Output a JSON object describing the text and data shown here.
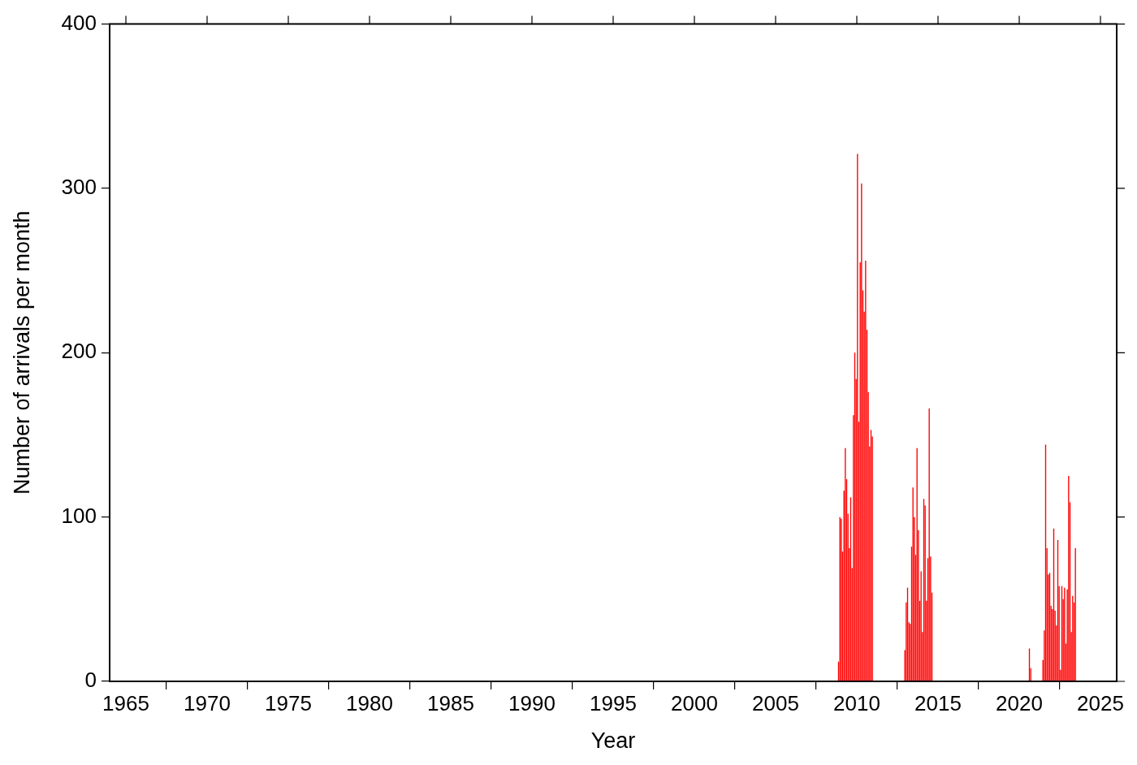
{
  "chart_data": {
    "type": "bar",
    "xlabel": "Year",
    "ylabel": "Number of arrivals per month",
    "xlim": [
      1964,
      2026
    ],
    "xticks": [
      1965,
      1970,
      1975,
      1980,
      1985,
      1990,
      1995,
      2000,
      2005,
      2010,
      2015,
      2020,
      2025
    ],
    "ylim": [
      0,
      400
    ],
    "yticks": [
      0,
      100,
      200,
      300,
      400
    ],
    "grid": false,
    "legend": false,
    "series": [
      {
        "color": "#ff0000",
        "x": [
          2008.875,
          2008.958,
          2009.042,
          2009.125,
          2009.208,
          2009.292,
          2009.375,
          2009.458,
          2009.542,
          2009.625,
          2009.708,
          2009.792,
          2009.875,
          2009.958,
          2010.042,
          2010.125,
          2010.208,
          2010.292,
          2010.375,
          2010.458,
          2010.542,
          2010.625,
          2010.708,
          2010.792,
          2010.875,
          2010.958,
          2012.958,
          2013.042,
          2013.125,
          2013.208,
          2013.292,
          2013.375,
          2013.458,
          2013.542,
          2013.625,
          2013.708,
          2013.792,
          2013.875,
          2013.958,
          2014.042,
          2014.125,
          2014.208,
          2014.292,
          2014.375,
          2014.458,
          2014.542,
          2014.625,
          2020.625,
          2020.708,
          2021.458,
          2021.542,
          2021.625,
          2021.708,
          2021.792,
          2021.875,
          2021.958,
          2022.042,
          2022.125,
          2022.208,
          2022.292,
          2022.375,
          2022.458,
          2022.542,
          2022.625,
          2022.708,
          2022.792,
          2022.875,
          2022.958,
          2023.042,
          2023.125,
          2023.208,
          2023.292,
          2023.375,
          2023.458
        ],
        "values": [
          12,
          100,
          99,
          79,
          116,
          142,
          123,
          102,
          81,
          112,
          69,
          162,
          200,
          184,
          321,
          158,
          255,
          303,
          238,
          225,
          256,
          214,
          176,
          143,
          153,
          149,
          19,
          48,
          57,
          36,
          35,
          82,
          118,
          100,
          77,
          142,
          92,
          49,
          67,
          30,
          111,
          107,
          49,
          75,
          166,
          76,
          54,
          20,
          8,
          13,
          31,
          144,
          81,
          65,
          66,
          46,
          44,
          93,
          43,
          34,
          86,
          58,
          7,
          58,
          50,
          57,
          23,
          56,
          125,
          109,
          30,
          52,
          48,
          81
        ]
      }
    ]
  }
}
